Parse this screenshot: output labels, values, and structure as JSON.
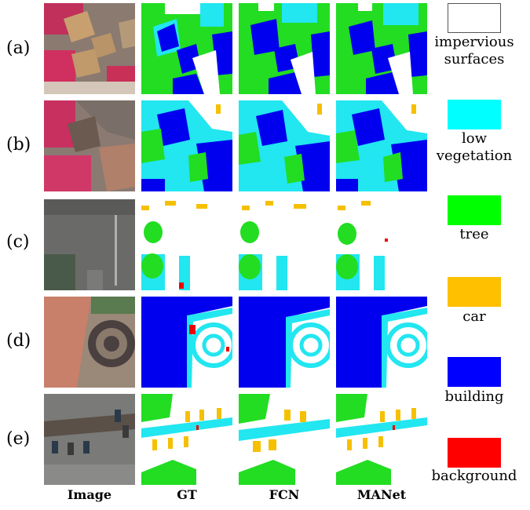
{
  "rows": [
    {
      "label": "(a)"
    },
    {
      "label": "(b)"
    },
    {
      "label": "(c)"
    },
    {
      "label": "(d)"
    },
    {
      "label": "(e)"
    }
  ],
  "columns": [
    "Image",
    "GT",
    "FCN",
    "MANet"
  ],
  "legend": [
    {
      "label": "impervious surfaces",
      "color": "#ffffff"
    },
    {
      "label": "low vegetation",
      "color": "#00ffff"
    },
    {
      "label": "tree",
      "color": "#00ff00"
    },
    {
      "label": "car",
      "color": "#ffc000"
    },
    {
      "label": "building",
      "color": "#0000ff"
    },
    {
      "label": "background",
      "color": "#ff0000"
    }
  ],
  "colors": {
    "impervious": "#ffffff",
    "low_vegetation": "#22e6f0",
    "tree": "#22dd22",
    "car": "#f5c000",
    "building": "#0000ee",
    "background": "#ee0000"
  }
}
